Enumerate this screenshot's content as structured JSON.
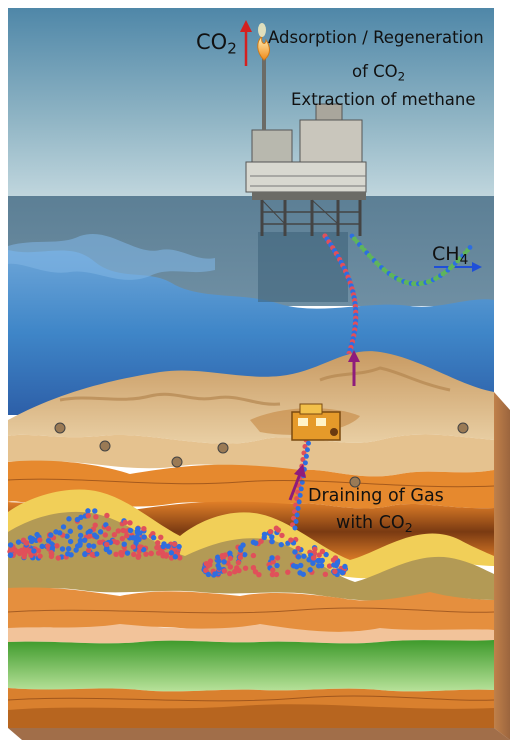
{
  "labels": {
    "co2_emitted": "CO",
    "co2_emitted_sub": "2",
    "process_line1": "Adsorption / Regeneration",
    "process_line2": "of CO",
    "process_line2_sub": "2",
    "process_line3": "Extraction of methane",
    "methane": "CH",
    "methane_sub": "4",
    "draining_line1": "Draining of Gas",
    "draining_line2": "with CO",
    "draining_line2_sub": "2"
  },
  "colors": {
    "sky_top": "#4f87a8",
    "sky_bottom": "#b9d3dd",
    "sea": "#3d83c6",
    "sand": "#d8b585",
    "orange_layer": "#e6892e",
    "dark_layer": "#6e3a17",
    "green_layer": "#63b43c",
    "co2_arrow": "#d42020",
    "ch4_arrow": "#1f4fd8",
    "gas_arrow": "#8e1c7c",
    "molecule_blue": "#2e6ee0",
    "molecule_red": "#e0505a",
    "molecule_green": "#5fb45c"
  },
  "icons": {
    "platform": "offshore-platform-icon",
    "flame": "gas-flare-icon",
    "rig": "seabed-rig-icon"
  }
}
